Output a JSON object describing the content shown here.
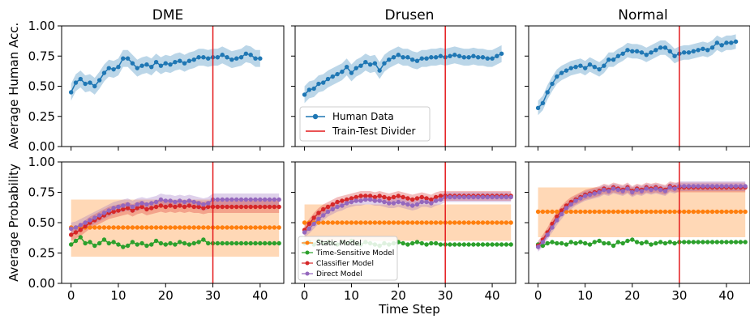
{
  "chart_data": [
    {
      "type": "line",
      "title": "DME",
      "row": "human",
      "ylabel": "Average Human Acc.",
      "xlim": [
        -2,
        45
      ],
      "ylim": [
        0,
        1
      ],
      "yticks": [
        "0.00",
        "0.25",
        "0.50",
        "0.75",
        "1.00"
      ],
      "divider": 30,
      "series": [
        {
          "key": "human",
          "color": "#1f77b4",
          "band": 0.07,
          "values": [
            0.45,
            0.53,
            0.56,
            0.52,
            0.53,
            0.5,
            0.55,
            0.61,
            0.65,
            0.64,
            0.66,
            0.73,
            0.73,
            0.69,
            0.65,
            0.67,
            0.68,
            0.66,
            0.7,
            0.67,
            0.69,
            0.68,
            0.7,
            0.71,
            0.69,
            0.71,
            0.72,
            0.74,
            0.74,
            0.73,
            0.74,
            0.74,
            0.76,
            0.74,
            0.72,
            0.73,
            0.74,
            0.77,
            0.76,
            0.73,
            0.73
          ]
        }
      ]
    },
    {
      "type": "line",
      "title": "Drusen",
      "row": "human",
      "xlim": [
        -2,
        45
      ],
      "ylim": [
        0,
        1
      ],
      "divider": 30,
      "series": [
        {
          "key": "human",
          "color": "#1f77b4",
          "band": 0.07,
          "values": [
            0.43,
            0.47,
            0.48,
            0.52,
            0.53,
            0.56,
            0.58,
            0.6,
            0.62,
            0.66,
            0.61,
            0.65,
            0.67,
            0.7,
            0.68,
            0.69,
            0.63,
            0.69,
            0.72,
            0.74,
            0.76,
            0.74,
            0.74,
            0.72,
            0.71,
            0.73,
            0.73,
            0.74,
            0.74,
            0.75,
            0.74,
            0.75,
            0.76,
            0.75,
            0.74,
            0.74,
            0.75,
            0.74,
            0.74,
            0.73,
            0.73,
            0.75,
            0.77
          ]
        }
      ]
    },
    {
      "type": "line",
      "title": "Normal",
      "row": "human",
      "xlim": [
        -2,
        45
      ],
      "ylim": [
        0,
        1
      ],
      "divider": 30,
      "series": [
        {
          "key": "human",
          "color": "#1f77b4",
          "band": 0.06,
          "values": [
            0.32,
            0.36,
            0.45,
            0.52,
            0.58,
            0.61,
            0.63,
            0.65,
            0.66,
            0.67,
            0.65,
            0.68,
            0.66,
            0.64,
            0.67,
            0.72,
            0.72,
            0.75,
            0.77,
            0.8,
            0.79,
            0.79,
            0.78,
            0.76,
            0.78,
            0.8,
            0.82,
            0.82,
            0.79,
            0.75,
            0.77,
            0.78,
            0.78,
            0.79,
            0.8,
            0.81,
            0.8,
            0.82,
            0.86,
            0.84,
            0.86,
            0.86,
            0.87
          ]
        }
      ]
    },
    {
      "type": "line",
      "row": "model",
      "ylabel": "Average Probability",
      "xlim": [
        -2,
        45
      ],
      "ylim": [
        0,
        1
      ],
      "yticks": [
        "0.00",
        "0.25",
        "0.50",
        "0.75",
        "1.00"
      ],
      "xticks": [
        "0",
        "10",
        "20",
        "30",
        "40"
      ],
      "divider": 30,
      "series": [
        {
          "key": "static",
          "color": "#ff7f0e",
          "band_range": [
            0.22,
            0.69
          ],
          "constant": 0.46
        },
        {
          "key": "time",
          "color": "#2ca02c",
          "values": [
            0.32,
            0.35,
            0.38,
            0.33,
            0.34,
            0.31,
            0.33,
            0.36,
            0.33,
            0.34,
            0.32,
            0.3,
            0.31,
            0.34,
            0.32,
            0.33,
            0.31,
            0.32,
            0.35,
            0.33,
            0.32,
            0.33,
            0.32,
            0.34,
            0.33,
            0.32,
            0.33,
            0.34,
            0.36,
            0.33,
            0.33,
            0.33,
            0.33,
            0.33,
            0.33,
            0.33,
            0.33,
            0.33,
            0.33,
            0.33,
            0.33,
            0.33,
            0.33,
            0.33,
            0.33
          ]
        },
        {
          "key": "classifier",
          "color": "#d62728",
          "band": 0.05,
          "values": [
            0.4,
            0.42,
            0.44,
            0.47,
            0.5,
            0.52,
            0.54,
            0.56,
            0.58,
            0.59,
            0.6,
            0.61,
            0.62,
            0.6,
            0.62,
            0.63,
            0.61,
            0.62,
            0.63,
            0.64,
            0.63,
            0.64,
            0.63,
            0.64,
            0.63,
            0.64,
            0.63,
            0.63,
            0.62,
            0.63,
            0.63,
            0.63,
            0.63,
            0.63,
            0.63,
            0.63,
            0.63,
            0.63,
            0.63,
            0.63,
            0.63,
            0.63,
            0.63,
            0.63,
            0.63
          ]
        },
        {
          "key": "direct",
          "color": "#9467bd",
          "band": 0.05,
          "values": [
            0.45,
            0.46,
            0.48,
            0.5,
            0.52,
            0.54,
            0.56,
            0.58,
            0.6,
            0.62,
            0.63,
            0.64,
            0.65,
            0.63,
            0.65,
            0.66,
            0.65,
            0.66,
            0.67,
            0.69,
            0.68,
            0.68,
            0.67,
            0.68,
            0.67,
            0.68,
            0.67,
            0.66,
            0.65,
            0.66,
            0.69,
            0.69,
            0.69,
            0.69,
            0.69,
            0.69,
            0.69,
            0.69,
            0.69,
            0.69,
            0.69,
            0.69,
            0.69,
            0.69,
            0.69
          ]
        }
      ]
    },
    {
      "type": "line",
      "row": "model",
      "xlim": [
        -2,
        45
      ],
      "ylim": [
        0,
        1
      ],
      "xticks": [
        "0",
        "10",
        "20",
        "30",
        "40"
      ],
      "xlabel": "Time Step",
      "divider": 30,
      "series": [
        {
          "key": "static",
          "color": "#ff7f0e",
          "band_range": [
            0.35,
            0.65
          ],
          "constant": 0.5
        },
        {
          "key": "time",
          "color": "#2ca02c",
          "values": [
            0.33,
            0.34,
            0.32,
            0.35,
            0.33,
            0.34,
            0.33,
            0.32,
            0.34,
            0.33,
            0.35,
            0.33,
            0.32,
            0.34,
            0.33,
            0.32,
            0.31,
            0.33,
            0.32,
            0.33,
            0.34,
            0.33,
            0.32,
            0.33,
            0.34,
            0.33,
            0.32,
            0.33,
            0.33,
            0.32,
            0.32,
            0.32,
            0.32,
            0.32,
            0.32,
            0.32,
            0.32,
            0.32,
            0.32,
            0.32,
            0.32,
            0.32,
            0.32,
            0.32,
            0.32
          ]
        },
        {
          "key": "classifier",
          "color": "#d62728",
          "band": 0.04,
          "values": [
            0.44,
            0.49,
            0.54,
            0.58,
            0.61,
            0.63,
            0.65,
            0.67,
            0.68,
            0.69,
            0.7,
            0.71,
            0.72,
            0.72,
            0.72,
            0.71,
            0.72,
            0.71,
            0.7,
            0.71,
            0.72,
            0.71,
            0.7,
            0.69,
            0.7,
            0.71,
            0.7,
            0.69,
            0.71,
            0.72,
            0.72,
            0.72,
            0.72,
            0.72,
            0.72,
            0.72,
            0.72,
            0.72,
            0.72,
            0.72,
            0.72,
            0.72,
            0.72,
            0.72,
            0.72
          ]
        },
        {
          "key": "direct",
          "color": "#9467bd",
          "band": 0.04,
          "values": [
            0.42,
            0.45,
            0.49,
            0.53,
            0.56,
            0.59,
            0.61,
            0.63,
            0.64,
            0.66,
            0.67,
            0.68,
            0.68,
            0.69,
            0.69,
            0.68,
            0.68,
            0.67,
            0.66,
            0.66,
            0.67,
            0.66,
            0.65,
            0.64,
            0.65,
            0.67,
            0.67,
            0.66,
            0.68,
            0.69,
            0.71,
            0.71,
            0.71,
            0.71,
            0.71,
            0.71,
            0.71,
            0.71,
            0.71,
            0.71,
            0.71,
            0.71,
            0.71,
            0.71,
            0.71
          ]
        }
      ]
    },
    {
      "type": "line",
      "row": "model",
      "xlim": [
        -2,
        45
      ],
      "ylim": [
        0,
        1
      ],
      "xticks": [
        "0",
        "10",
        "20",
        "30",
        "40"
      ],
      "divider": 30,
      "series": [
        {
          "key": "static",
          "color": "#ff7f0e",
          "band_range": [
            0.38,
            0.79
          ],
          "constant": 0.59
        },
        {
          "key": "time",
          "color": "#2ca02c",
          "values": [
            0.32,
            0.31,
            0.33,
            0.34,
            0.33,
            0.33,
            0.32,
            0.34,
            0.33,
            0.34,
            0.33,
            0.32,
            0.34,
            0.35,
            0.33,
            0.33,
            0.31,
            0.34,
            0.33,
            0.35,
            0.36,
            0.34,
            0.33,
            0.34,
            0.32,
            0.33,
            0.34,
            0.33,
            0.34,
            0.33,
            0.34,
            0.34,
            0.34,
            0.34,
            0.34,
            0.34,
            0.34,
            0.34,
            0.34,
            0.34,
            0.34,
            0.34,
            0.34,
            0.34,
            0.34
          ]
        },
        {
          "key": "classifier",
          "color": "#d62728",
          "band": 0.04,
          "values": [
            0.31,
            0.36,
            0.42,
            0.49,
            0.55,
            0.6,
            0.64,
            0.67,
            0.69,
            0.71,
            0.73,
            0.74,
            0.75,
            0.76,
            0.78,
            0.77,
            0.79,
            0.78,
            0.77,
            0.79,
            0.76,
            0.78,
            0.77,
            0.79,
            0.78,
            0.79,
            0.78,
            0.77,
            0.8,
            0.79,
            0.79,
            0.79,
            0.79,
            0.79,
            0.79,
            0.79,
            0.79,
            0.79,
            0.79,
            0.79,
            0.79,
            0.79,
            0.79,
            0.79,
            0.79
          ]
        },
        {
          "key": "direct",
          "color": "#9467bd",
          "band": 0.04,
          "values": [
            0.3,
            0.34,
            0.4,
            0.46,
            0.52,
            0.57,
            0.62,
            0.65,
            0.68,
            0.7,
            0.72,
            0.73,
            0.74,
            0.75,
            0.77,
            0.76,
            0.78,
            0.77,
            0.76,
            0.78,
            0.75,
            0.77,
            0.76,
            0.78,
            0.77,
            0.78,
            0.77,
            0.76,
            0.79,
            0.78,
            0.8,
            0.8,
            0.8,
            0.8,
            0.8,
            0.8,
            0.8,
            0.8,
            0.8,
            0.8,
            0.8,
            0.8,
            0.8,
            0.8,
            0.8
          ]
        }
      ]
    }
  ],
  "legend_top": {
    "placement": "lower-left of Drusen panel",
    "entries": [
      {
        "label": "Human Data",
        "color": "#1f77b4",
        "marker": true
      },
      {
        "label": "Train-Test Divider",
        "color": "#e41a1c",
        "marker": false
      }
    ]
  },
  "legend_bottom": {
    "placement": "lower-left of Drusen panel",
    "entries": [
      {
        "label": "Static Model",
        "color": "#ff7f0e"
      },
      {
        "label": "Time-Sensitive Model",
        "color": "#2ca02c"
      },
      {
        "label": "Classifier Model",
        "color": "#d62728"
      },
      {
        "label": "Direct Model",
        "color": "#9467bd"
      }
    ]
  },
  "divider_color": "#e41a1c"
}
